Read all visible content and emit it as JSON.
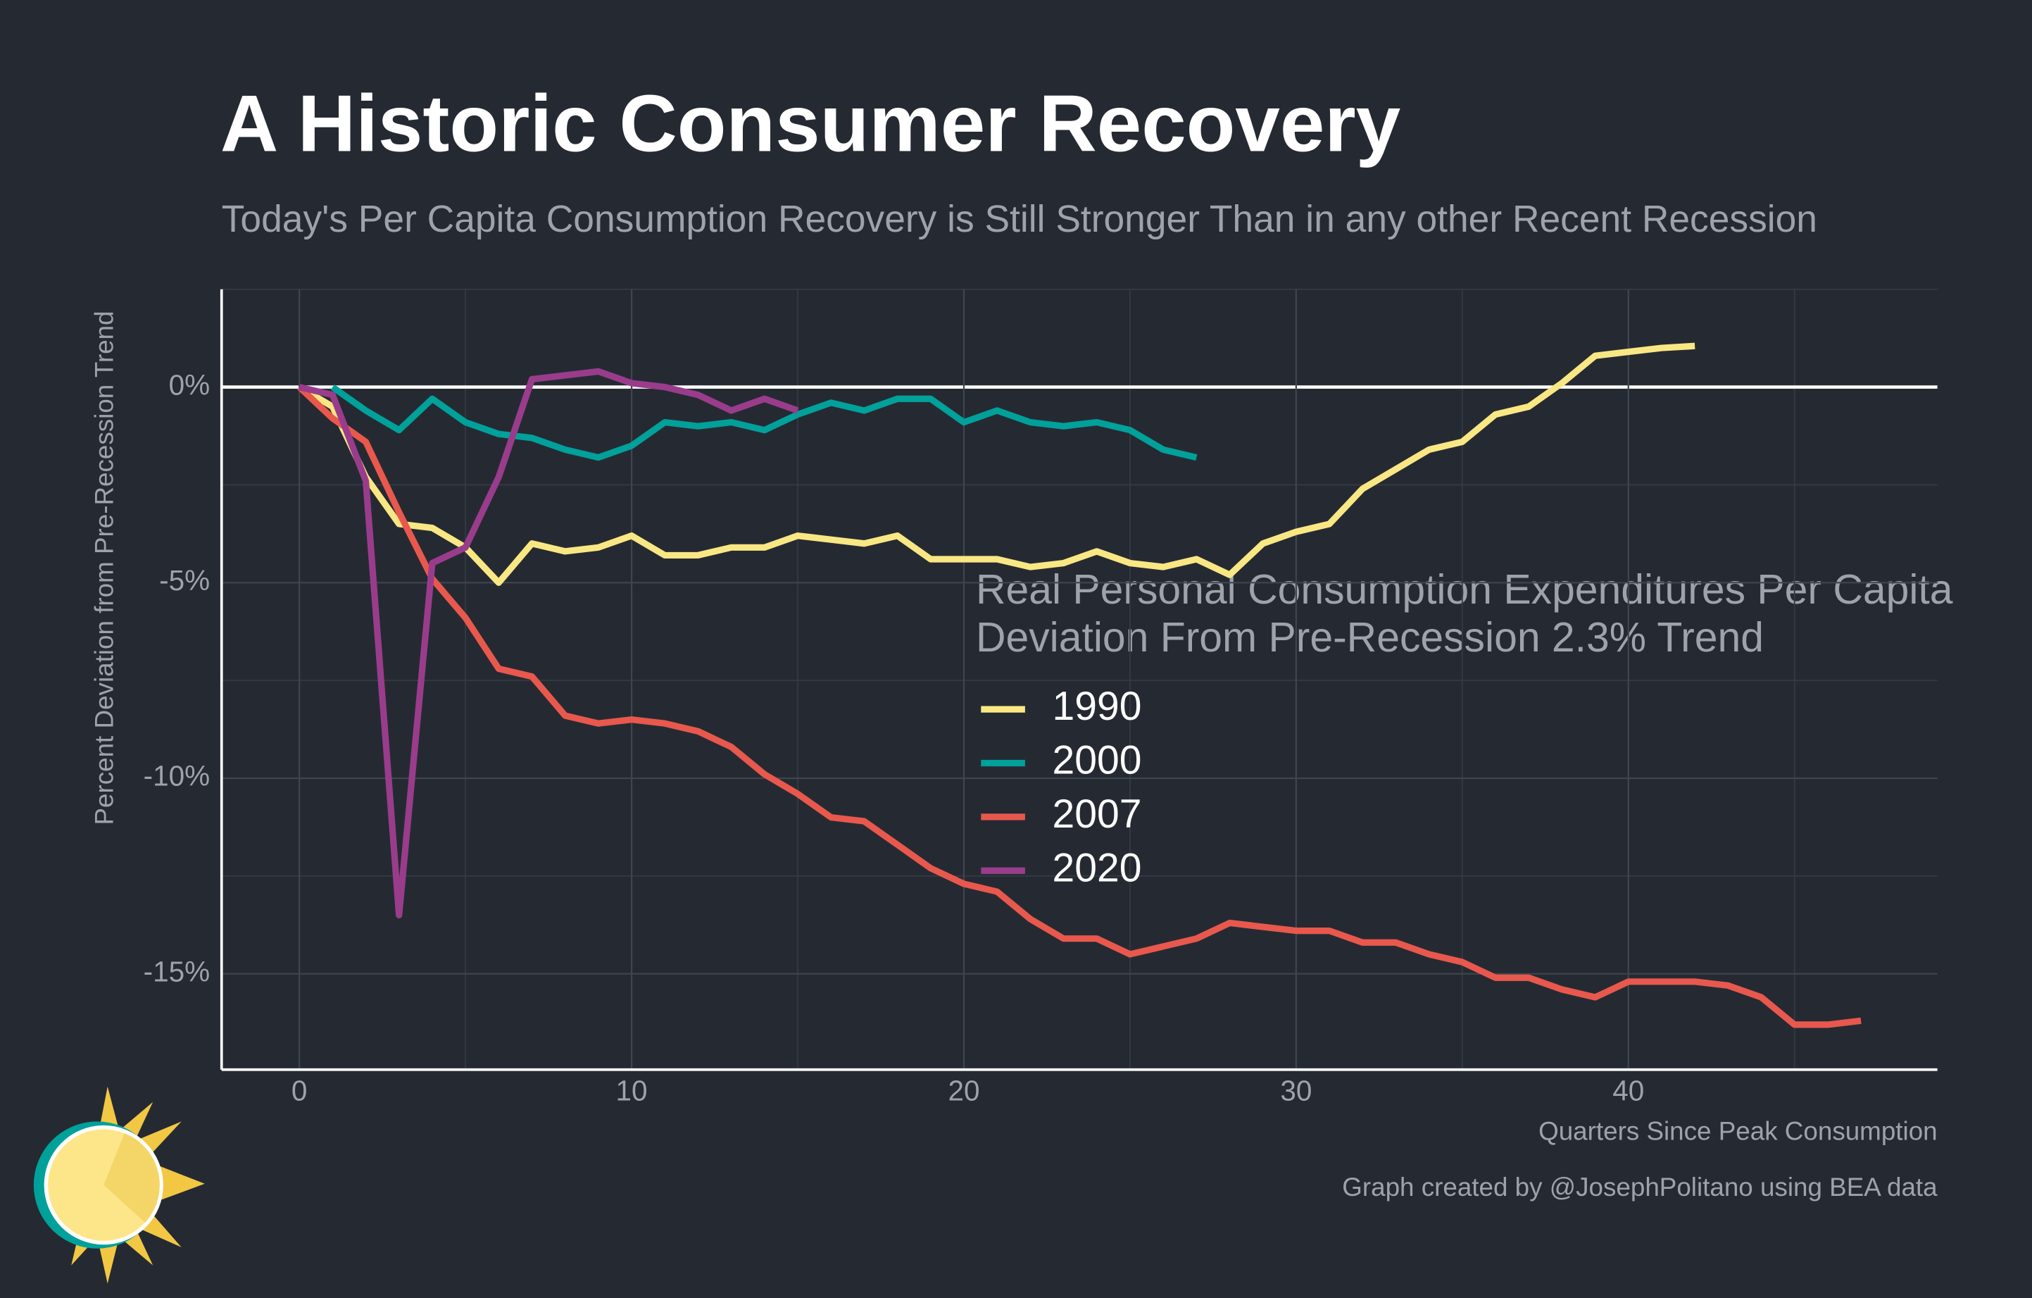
{
  "chart_data": {
    "type": "line",
    "title": "A Historic Consumer Recovery",
    "subtitle": "Today's Per Capita Consumption Recovery is Still Stronger Than in any other Recent Recession",
    "x_label": "Quarters Since Peak Consumption",
    "y_label": "Percent Deviation from Pre-Recession Trend",
    "legend_title": [
      "Real Personal Consumption Expenditures Per Capita",
      "Deviation From Pre-Recession 2.3% Trend"
    ],
    "caption": "Graph created by @JosephPolitano using BEA data",
    "x": [
      0,
      1,
      2,
      3,
      4,
      5,
      6,
      7,
      8,
      9,
      10,
      11,
      12,
      13,
      14,
      15,
      16,
      17,
      18,
      19,
      20,
      21,
      22,
      23,
      24,
      25,
      26,
      27,
      28,
      29,
      30,
      31,
      32,
      33,
      34,
      35,
      36,
      37,
      38,
      39,
      40,
      41,
      42,
      43,
      44,
      45,
      46,
      47
    ],
    "series": [
      {
        "name": "1990",
        "color": "#f9e784",
        "values": [
          0,
          -0.5,
          -2.3,
          -3.5,
          -3.6,
          -4.1,
          -5.0,
          -4.0,
          -4.2,
          -4.1,
          -3.8,
          -4.3,
          -4.3,
          -4.1,
          -4.1,
          -3.8,
          -3.9,
          -4.0,
          -3.8,
          -4.4,
          -4.4,
          -4.4,
          -4.6,
          -4.5,
          -4.2,
          -4.5,
          -4.6,
          -4.4,
          -4.8,
          -4.0,
          -3.7,
          -3.5,
          -2.6,
          -2.1,
          -1.6,
          -1.4,
          -0.7,
          -0.5,
          0.1,
          0.8,
          0.9,
          1.0,
          1.05,
          null,
          null,
          null,
          null,
          null
        ]
      },
      {
        "name": "2000",
        "color": "#00a19a",
        "values": [
          null,
          0,
          -0.6,
          -1.1,
          -0.3,
          -0.9,
          -1.2,
          -1.3,
          -1.6,
          -1.8,
          -1.5,
          -0.9,
          -1.0,
          -0.9,
          -1.1,
          -0.7,
          -0.4,
          -0.6,
          -0.3,
          -0.3,
          -0.9,
          -0.6,
          -0.9,
          -1.0,
          -0.9,
          -1.1,
          -1.6,
          -1.8,
          null,
          null,
          null,
          null,
          null,
          null,
          null,
          null,
          null,
          null,
          null,
          null,
          null,
          null,
          null,
          null,
          null,
          null,
          null,
          null
        ]
      },
      {
        "name": "2007",
        "color": "#e8584d",
        "values": [
          0,
          -0.8,
          -1.4,
          -3.2,
          -4.9,
          -5.9,
          -7.2,
          -7.4,
          -8.4,
          -8.6,
          -8.5,
          -8.6,
          -8.8,
          -9.2,
          -9.9,
          -10.4,
          -11.0,
          -11.1,
          -11.7,
          -12.3,
          -12.7,
          -12.9,
          -13.6,
          -14.1,
          -14.1,
          -14.5,
          -14.3,
          -14.1,
          -13.7,
          -13.8,
          -13.9,
          -13.9,
          -14.2,
          -14.2,
          -14.5,
          -14.7,
          -15.1,
          -15.1,
          -15.4,
          -15.6,
          -15.2,
          -15.2,
          -15.2,
          -15.3,
          -15.6,
          -16.3,
          -16.3,
          -16.2
        ]
      },
      {
        "name": "2020",
        "color": "#9a3c8c",
        "values": [
          0,
          -0.2,
          -2.4,
          -13.5,
          -4.5,
          -4.1,
          -2.3,
          0.2,
          0.3,
          0.4,
          0.1,
          0,
          -0.2,
          -0.6,
          -0.3,
          -0.6,
          null,
          null,
          null,
          null,
          null,
          null,
          null,
          null,
          null,
          null,
          null,
          null,
          null,
          null,
          null,
          null,
          null,
          null,
          null,
          null,
          null,
          null,
          null,
          null,
          null,
          null,
          null,
          null,
          null,
          null,
          null,
          null
        ]
      }
    ],
    "xlim": [
      -2.34,
      49.3
    ],
    "ylim": [
      -17.45,
      2.5
    ],
    "xticks": [
      0,
      10,
      20,
      30,
      40
    ],
    "yticks": [
      {
        "value": 0,
        "label": "0%"
      },
      {
        "value": -5,
        "label": "-5%"
      },
      {
        "value": -10,
        "label": "-10%"
      },
      {
        "value": -15,
        "label": "-15%"
      }
    ],
    "grid": true
  }
}
